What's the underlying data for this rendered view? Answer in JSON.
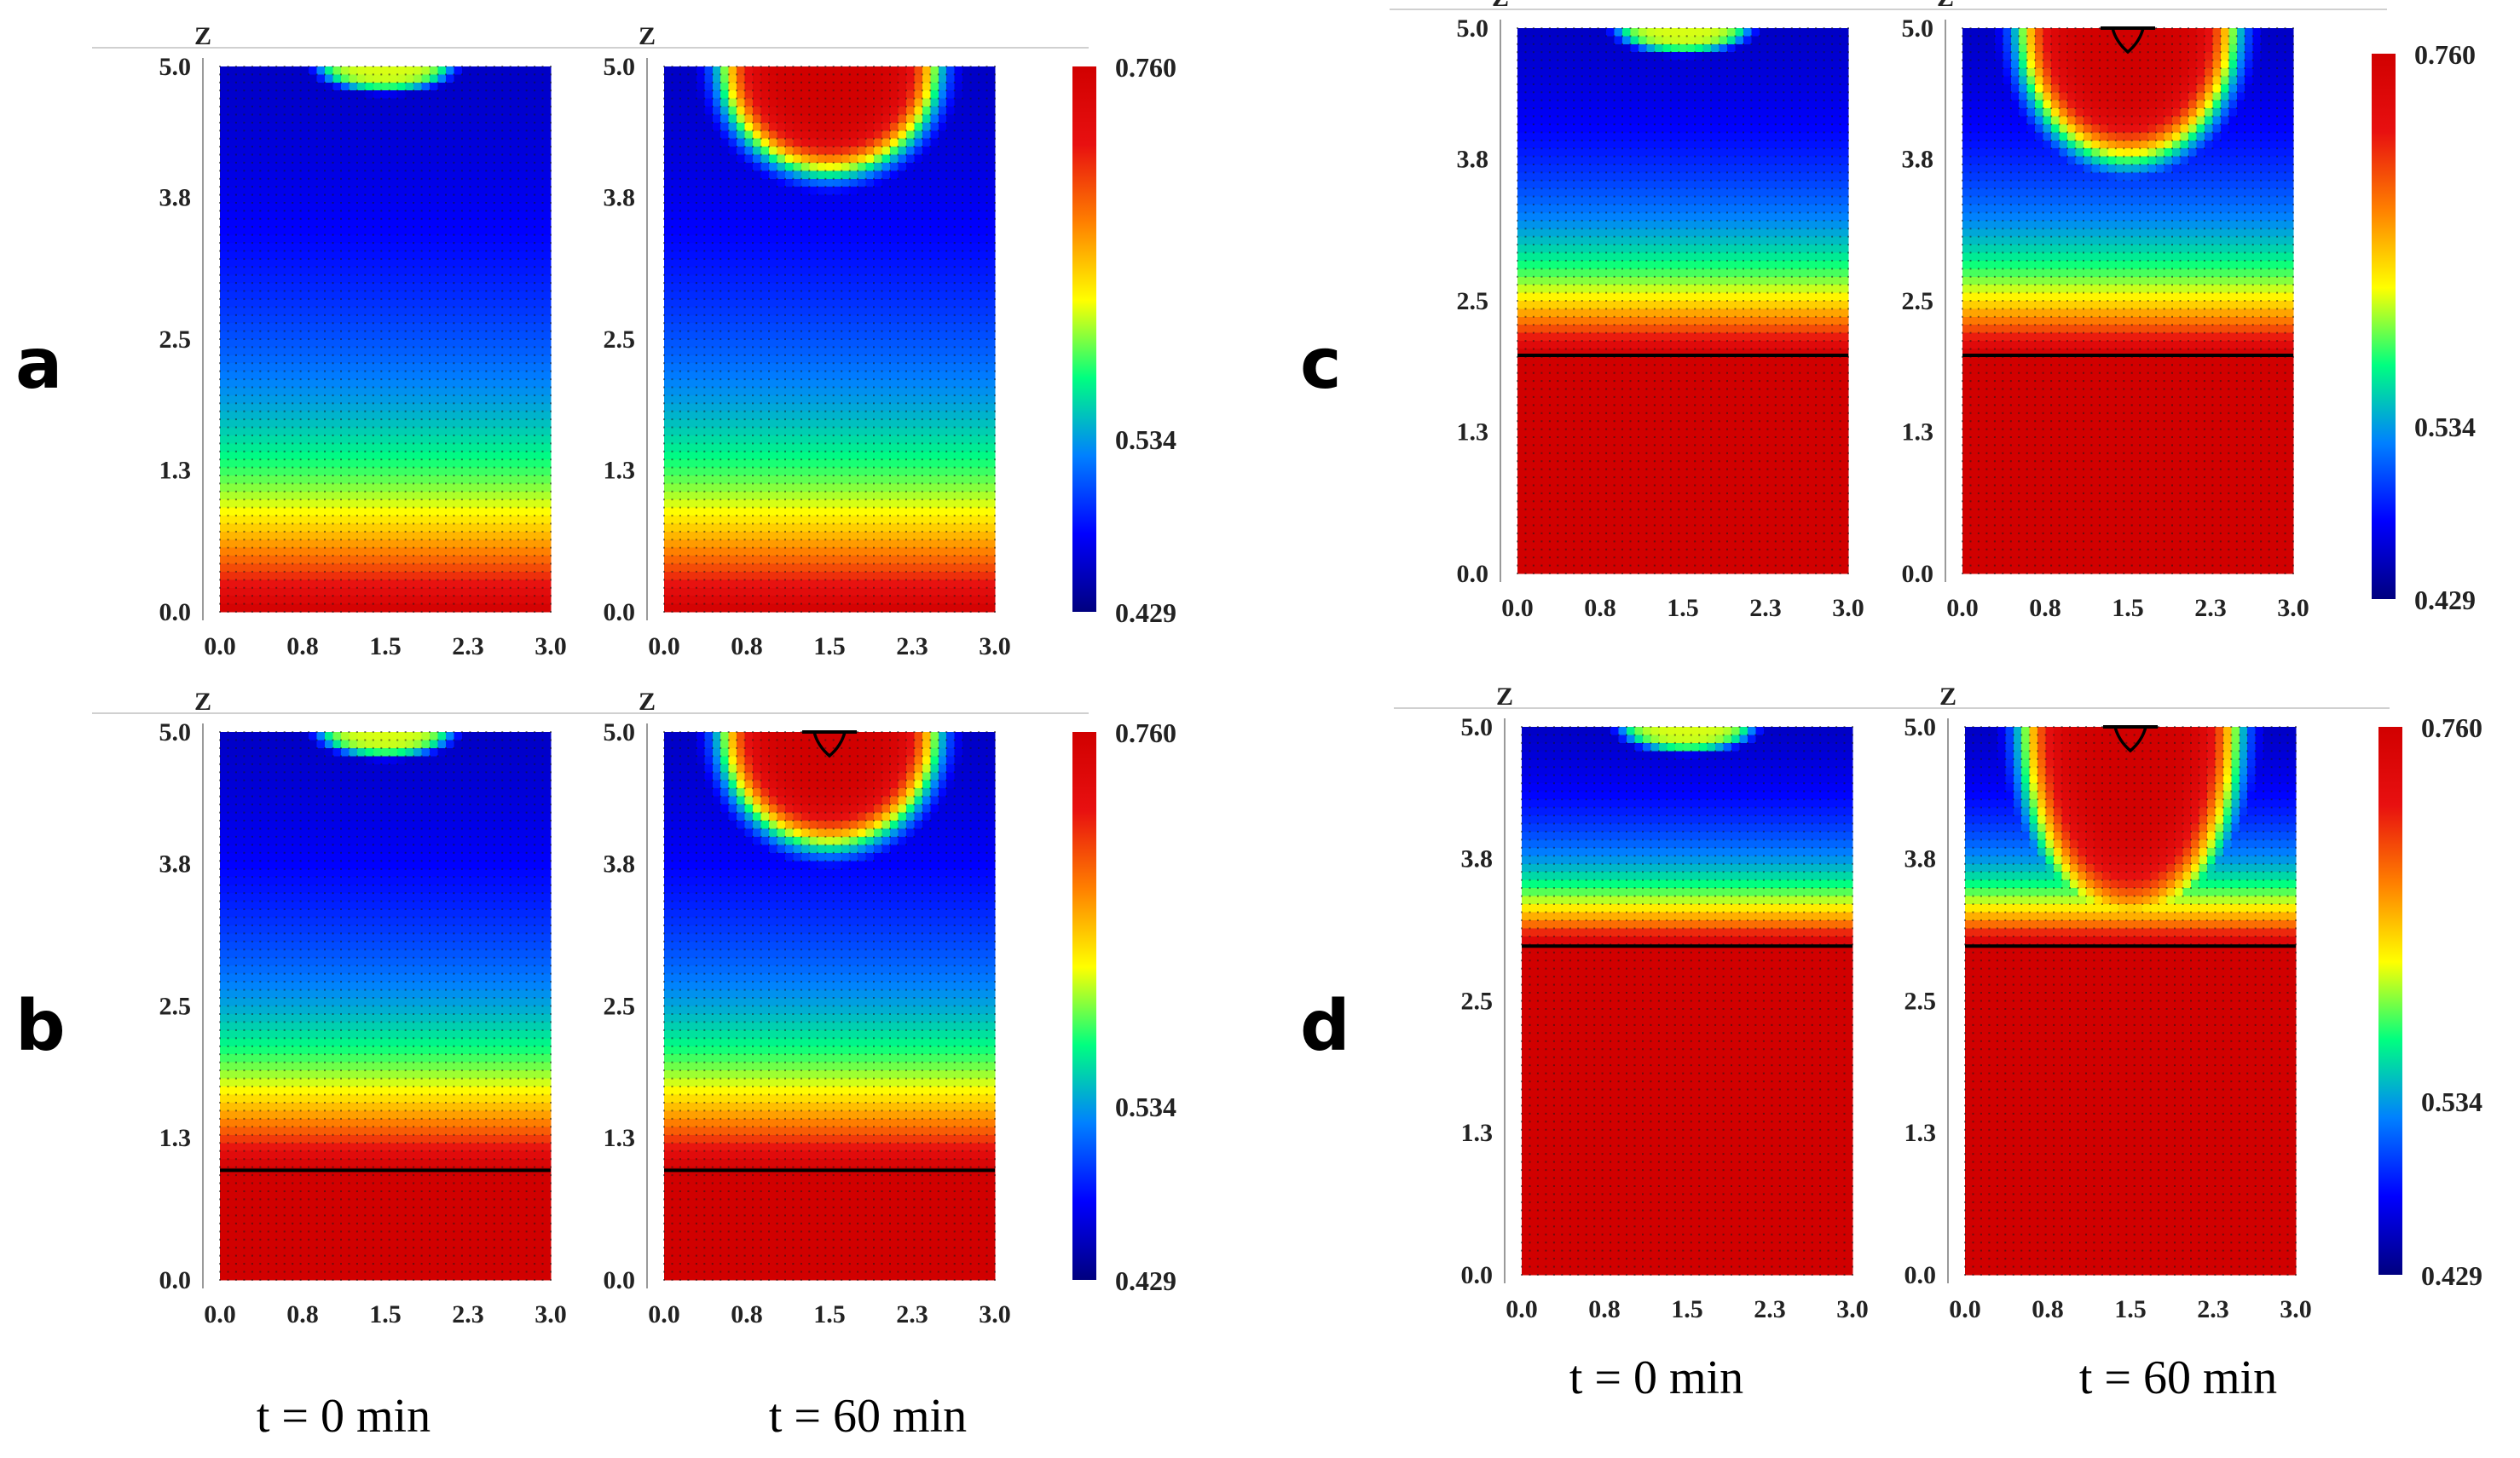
{
  "figure": {
    "colormap": {
      "min": 0.429,
      "max": 0.76,
      "ticks": [
        "0.760",
        "0.534",
        "0.429"
      ],
      "stops": [
        "#00007f",
        "#0000ff",
        "#0080ff",
        "#00ff80",
        "#ffff00",
        "#ff8000",
        "#e81010",
        "#d10000"
      ]
    },
    "time_labels": {
      "t0": "t = 0 min",
      "t60": "t = 60 min"
    }
  },
  "chart_data": [
    {
      "type": "heatmap",
      "panel": "a",
      "time": "t = 0 min",
      "axis_label": "Z",
      "xlim": [
        0,
        3
      ],
      "ylim": [
        0,
        5
      ],
      "xticks": [
        "0.0",
        "0.8",
        "1.5",
        "2.3",
        "3.0"
      ],
      "yticks": [
        "0.0",
        "1.3",
        "2.5",
        "3.8",
        "5.0"
      ],
      "boundary_z": 0,
      "bulb": {
        "x": 1.5,
        "radius": 0.6,
        "depth_scale": 0.25,
        "intensity": 0.55
      },
      "cusp": false
    },
    {
      "type": "heatmap",
      "panel": "a",
      "time": "t = 60 min",
      "axis_label": "Z",
      "xlim": [
        0,
        3
      ],
      "ylim": [
        0,
        5
      ],
      "xticks": [
        "0.0",
        "0.8",
        "1.5",
        "2.3",
        "3.0"
      ],
      "yticks": [
        "0.0",
        "1.3",
        "2.5",
        "3.8",
        "5.0"
      ],
      "boundary_z": 0,
      "bulb": {
        "x": 1.5,
        "radius": 0.95,
        "depth_scale": 0.82,
        "intensity": 1.0
      },
      "cusp": false
    },
    {
      "type": "heatmap",
      "panel": "b",
      "time": "t = 0 min",
      "axis_label": "Z",
      "xlim": [
        0,
        3
      ],
      "ylim": [
        0,
        5
      ],
      "xticks": [
        "0.0",
        "0.8",
        "1.5",
        "2.3",
        "3.0"
      ],
      "yticks": [
        "0.0",
        "1.3",
        "2.5",
        "3.8",
        "5.0"
      ],
      "boundary_z": 1.0,
      "bulb": {
        "x": 1.5,
        "radius": 0.6,
        "depth_scale": 0.25,
        "intensity": 0.55
      },
      "cusp": false
    },
    {
      "type": "heatmap",
      "panel": "b",
      "time": "t = 60 min",
      "axis_label": "Z",
      "xlim": [
        0,
        3
      ],
      "ylim": [
        0,
        5
      ],
      "xticks": [
        "0.0",
        "0.8",
        "1.5",
        "2.3",
        "3.0"
      ],
      "yticks": [
        "0.0",
        "1.3",
        "2.5",
        "3.8",
        "5.0"
      ],
      "boundary_z": 1.0,
      "bulb": {
        "x": 1.5,
        "radius": 0.95,
        "depth_scale": 0.88,
        "intensity": 1.0
      },
      "cusp": true
    },
    {
      "type": "heatmap",
      "panel": "c",
      "time": "t = 0 min",
      "axis_label": "Z",
      "xlim": [
        0,
        3
      ],
      "ylim": [
        0,
        5
      ],
      "xticks": [
        "0.0",
        "0.8",
        "1.5",
        "2.3",
        "3.0"
      ],
      "yticks": [
        "0.0",
        "1.3",
        "2.5",
        "3.8",
        "5.0"
      ],
      "boundary_z": 2.0,
      "bulb": {
        "x": 1.5,
        "radius": 0.6,
        "depth_scale": 0.25,
        "intensity": 0.55
      },
      "cusp": false
    },
    {
      "type": "heatmap",
      "panel": "c",
      "time": "t = 60 min",
      "axis_label": "Z",
      "xlim": [
        0,
        3
      ],
      "ylim": [
        0,
        5
      ],
      "xticks": [
        "0.0",
        "0.8",
        "1.5",
        "2.3",
        "3.0"
      ],
      "yticks": [
        "0.0",
        "1.3",
        "2.5",
        "3.8",
        "5.0"
      ],
      "boundary_z": 2.0,
      "bulb": {
        "x": 1.5,
        "radius": 0.95,
        "depth_scale": 1.05,
        "intensity": 1.0
      },
      "cusp": true
    },
    {
      "type": "heatmap",
      "panel": "d",
      "time": "t = 0 min",
      "axis_label": "Z",
      "xlim": [
        0,
        3
      ],
      "ylim": [
        0,
        5
      ],
      "xticks": [
        "0.0",
        "0.8",
        "1.5",
        "2.3",
        "3.0"
      ],
      "yticks": [
        "0.0",
        "1.3",
        "2.5",
        "3.8",
        "5.0"
      ],
      "boundary_z": 3.0,
      "bulb": {
        "x": 1.5,
        "radius": 0.6,
        "depth_scale": 0.25,
        "intensity": 0.55
      },
      "cusp": false
    },
    {
      "type": "heatmap",
      "panel": "d",
      "time": "t = 60 min",
      "axis_label": "Z",
      "xlim": [
        0,
        3
      ],
      "ylim": [
        0,
        5
      ],
      "xticks": [
        "0.0",
        "0.8",
        "1.5",
        "2.3",
        "3.0"
      ],
      "yticks": [
        "0.0",
        "1.3",
        "2.5",
        "3.8",
        "5.0"
      ],
      "boundary_z": 3.0,
      "bulb": {
        "x": 1.5,
        "radius": 0.95,
        "depth_scale": 1.6,
        "intensity": 1.0
      },
      "cusp": true
    }
  ]
}
